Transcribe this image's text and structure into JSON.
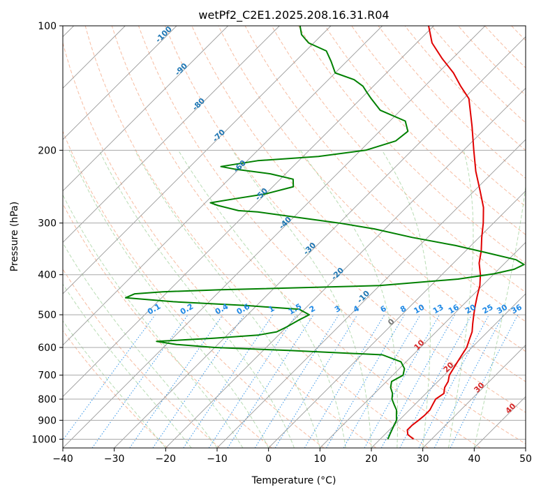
{
  "chart_data": {
    "type": "line",
    "title": "wetPf2_C2E1.2025.208.16.31.R04",
    "xlabel": "Temperature (°C)",
    "ylabel": "Pressure (hPa)",
    "xlim": [
      -40,
      50
    ],
    "ylim": [
      1050,
      100
    ],
    "yscale": "log",
    "grid": true,
    "x_ticks": [
      -40,
      -30,
      -20,
      -10,
      0,
      10,
      20,
      30,
      40,
      50
    ],
    "y_ticks": [
      100,
      200,
      300,
      400,
      500,
      600,
      700,
      800,
      900,
      1000
    ],
    "skew": 45,
    "series": [
      {
        "color": "#e00000",
        "values": [
          [
            26.5,
            1000
          ],
          [
            24.5,
            975
          ],
          [
            23.5,
            950
          ],
          [
            23.5,
            925
          ],
          [
            23.8,
            900
          ],
          [
            24.0,
            875
          ],
          [
            24.0,
            850
          ],
          [
            23.5,
            825
          ],
          [
            23.0,
            800
          ],
          [
            23.5,
            775
          ],
          [
            22.5,
            750
          ],
          [
            22.0,
            725
          ],
          [
            21.0,
            700
          ],
          [
            20.5,
            675
          ],
          [
            20.0,
            650
          ],
          [
            19.5,
            625
          ],
          [
            19.0,
            600
          ],
          [
            18.0,
            575
          ],
          [
            17.0,
            550
          ],
          [
            15.5,
            525
          ],
          [
            14.0,
            500
          ],
          [
            12.5,
            475
          ],
          [
            11.0,
            450
          ],
          [
            9.5,
            425
          ],
          [
            7.5,
            400
          ],
          [
            5.0,
            375
          ],
          [
            3.0,
            350
          ],
          [
            0.5,
            325
          ],
          [
            -2.0,
            300
          ],
          [
            -5.0,
            275
          ],
          [
            -9.0,
            250
          ],
          [
            -13.5,
            225
          ],
          [
            -18.0,
            200
          ],
          [
            -23.0,
            175
          ],
          [
            -29.0,
            150
          ],
          [
            -33.0,
            140
          ],
          [
            -37.0,
            130
          ],
          [
            -42.0,
            120
          ],
          [
            -47.0,
            110
          ],
          [
            -51.0,
            100
          ]
        ]
      },
      {
        "color": "#008000",
        "values": [
          [
            21.5,
            1000
          ],
          [
            21.0,
            975
          ],
          [
            20.5,
            950
          ],
          [
            20.0,
            925
          ],
          [
            19.5,
            900
          ],
          [
            18.5,
            875
          ],
          [
            17.5,
            850
          ],
          [
            16.0,
            825
          ],
          [
            14.5,
            800
          ],
          [
            13.5,
            775
          ],
          [
            12.0,
            750
          ],
          [
            11.0,
            725
          ],
          [
            12.0,
            700
          ],
          [
            11.0,
            675
          ],
          [
            9.0,
            650
          ],
          [
            4.0,
            625
          ],
          [
            -15.0,
            610
          ],
          [
            -30.0,
            600
          ],
          [
            -38.0,
            590
          ],
          [
            -42.5,
            580
          ],
          [
            -32.0,
            570
          ],
          [
            -24.0,
            560
          ],
          [
            -21.0,
            550
          ],
          [
            -20.0,
            535
          ],
          [
            -19.0,
            515
          ],
          [
            -18.0,
            500
          ],
          [
            -21.0,
            485
          ],
          [
            -32.0,
            475
          ],
          [
            -47.0,
            465
          ],
          [
            -57.0,
            455
          ],
          [
            -56.0,
            445
          ],
          [
            -51.0,
            440
          ],
          [
            -40.0,
            435
          ],
          [
            -10.0,
            425
          ],
          [
            4.0,
            410
          ],
          [
            10.0,
            398
          ],
          [
            13.0,
            388
          ],
          [
            14.0,
            378
          ],
          [
            11.5,
            368
          ],
          [
            5.0,
            355
          ],
          [
            -3.0,
            340
          ],
          [
            -13.0,
            325
          ],
          [
            -22.0,
            310
          ],
          [
            -30.0,
            300
          ],
          [
            -40.0,
            290
          ],
          [
            -48.0,
            282
          ],
          [
            -52.0,
            280
          ],
          [
            -57.0,
            272
          ],
          [
            -59.0,
            268
          ],
          [
            -55.0,
            262
          ],
          [
            -50.0,
            255
          ],
          [
            -46.0,
            245
          ],
          [
            -47.5,
            235
          ],
          [
            -53.0,
            228
          ],
          [
            -61.0,
            222
          ],
          [
            -64.0,
            219
          ],
          [
            -58.0,
            212
          ],
          [
            -47.0,
            207
          ],
          [
            -39.0,
            200
          ],
          [
            -35.0,
            190
          ],
          [
            -34.5,
            180
          ],
          [
            -37.0,
            170
          ],
          [
            -44.0,
            160
          ],
          [
            -48.0,
            150
          ],
          [
            -50.0,
            145
          ],
          [
            -52.0,
            140
          ],
          [
            -55.0,
            135
          ],
          [
            -60.0,
            130
          ],
          [
            -63.0,
            122
          ],
          [
            -66.0,
            115
          ],
          [
            -71.0,
            110
          ],
          [
            -74.0,
            105
          ],
          [
            -76.0,
            100
          ]
        ]
      }
    ],
    "isotherm_labels": [
      "-100",
      "-90",
      "-80",
      "-70",
      "-60",
      "-50",
      "-40",
      "-30",
      "-20",
      "-10",
      "0",
      "10",
      "20",
      "30",
      "40"
    ],
    "mixing_ratio_labels": [
      "0.1",
      "0.2",
      "0.4",
      "0.6",
      "1",
      "1.5",
      "2",
      "3",
      "4",
      "6",
      "8",
      "10",
      "13",
      "16",
      "20",
      "25",
      "30",
      "36"
    ]
  }
}
